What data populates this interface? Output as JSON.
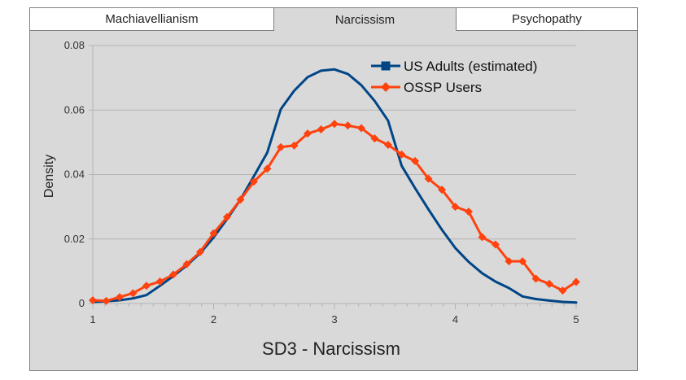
{
  "tabs": [
    {
      "label": "Machiavellianism",
      "active": false
    },
    {
      "label": "Narcissism",
      "active": true
    },
    {
      "label": "Psychopathy",
      "active": false
    }
  ],
  "chart_data": {
    "type": "line",
    "title": "",
    "xlabel": "SD3 - Narcissism",
    "ylabel": "Density",
    "xlim": [
      1,
      5
    ],
    "ylim": [
      0,
      0.08
    ],
    "xticks": [
      1,
      2,
      3,
      4,
      5
    ],
    "xtick_labels": [
      "1",
      "2",
      "3",
      "4",
      "5"
    ],
    "yticks": [
      0,
      0.02,
      0.04,
      0.06,
      0.08
    ],
    "ytick_labels": [
      "0",
      "0.02",
      "0.04",
      "0.06",
      "0.08"
    ],
    "grid": "horizontal",
    "legend": "top-right",
    "series": [
      {
        "name": "US Adults (estimated)",
        "color": "#004586",
        "marker": "none",
        "legend_marker": "square",
        "x": [
          1.0,
          1.111,
          1.222,
          1.333,
          1.444,
          1.556,
          1.667,
          1.778,
          1.889,
          2.0,
          2.111,
          2.222,
          2.333,
          2.444,
          2.556,
          2.667,
          2.778,
          2.889,
          3.0,
          3.111,
          3.222,
          3.333,
          3.444,
          3.556,
          3.667,
          3.778,
          3.889,
          4.0,
          4.111,
          4.222,
          4.333,
          4.444,
          4.556,
          4.667,
          4.778,
          4.889,
          5.0
        ],
        "y": [
          0.0005,
          0.0007,
          0.001,
          0.0016,
          0.0026,
          0.0055,
          0.0085,
          0.0118,
          0.0156,
          0.0205,
          0.0262,
          0.0322,
          0.0395,
          0.0468,
          0.0603,
          0.066,
          0.0702,
          0.0722,
          0.0726,
          0.0712,
          0.0677,
          0.0628,
          0.0567,
          0.0427,
          0.0358,
          0.0292,
          0.0229,
          0.0172,
          0.0129,
          0.0094,
          0.0068,
          0.0048,
          0.0022,
          0.0014,
          0.0009,
          0.0005,
          0.0003
        ]
      },
      {
        "name": "OSSP Users",
        "color": "#ff420e",
        "marker": "diamond",
        "legend_marker": "diamond",
        "x": [
          1.0,
          1.111,
          1.222,
          1.333,
          1.444,
          1.556,
          1.667,
          1.778,
          1.889,
          2.0,
          2.111,
          2.222,
          2.333,
          2.444,
          2.556,
          2.667,
          2.778,
          2.889,
          3.0,
          3.111,
          3.222,
          3.333,
          3.444,
          3.556,
          3.667,
          3.778,
          3.889,
          4.0,
          4.111,
          4.222,
          4.333,
          4.444,
          4.556,
          4.667,
          4.778,
          4.889,
          5.0
        ],
        "y": [
          0.001,
          0.0008,
          0.002,
          0.0032,
          0.0055,
          0.0068,
          0.009,
          0.0122,
          0.016,
          0.0218,
          0.0268,
          0.0322,
          0.0378,
          0.0418,
          0.0485,
          0.049,
          0.0527,
          0.054,
          0.0557,
          0.0552,
          0.0544,
          0.0512,
          0.0492,
          0.0462,
          0.0442,
          0.0387,
          0.0353,
          0.03,
          0.0285,
          0.0206,
          0.0183,
          0.0131,
          0.0131,
          0.0077,
          0.0061,
          0.004,
          0.0067
        ]
      }
    ]
  }
}
